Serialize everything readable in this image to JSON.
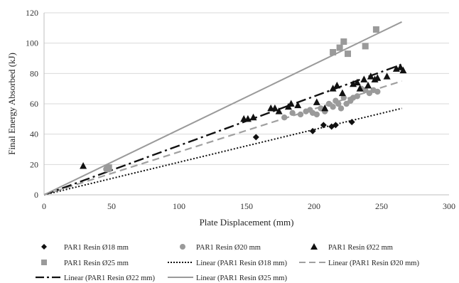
{
  "chart_data": {
    "type": "scatter",
    "xlabel": "Plate Displacement (mm)",
    "ylabel": "Final Energy Absorbed (kJ)",
    "xlim": [
      0,
      300
    ],
    "ylim": [
      0,
      120
    ],
    "x_ticks": [
      "0",
      "50",
      "100",
      "150",
      "200",
      "250",
      "300"
    ],
    "y_ticks": [
      "0",
      "20",
      "40",
      "60",
      "80",
      "100",
      "120"
    ],
    "grid": "horizontal",
    "legend_position": "bottom",
    "series": [
      {
        "name": "PAR1 Resin Ø18 mm",
        "marker": "diamond",
        "color": "#111111",
        "points": [
          [
            157,
            38
          ],
          [
            199,
            42
          ],
          [
            213,
            45
          ],
          [
            216,
            46
          ],
          [
            228,
            48
          ],
          [
            207,
            46
          ]
        ]
      },
      {
        "name": "PAR1 Resin Ø20 mm",
        "marker": "circle",
        "color": "#9a9a9a",
        "points": [
          [
            46,
            17
          ],
          [
            178,
            51
          ],
          [
            184,
            54
          ],
          [
            190,
            53
          ],
          [
            194,
            55
          ],
          [
            197,
            56
          ],
          [
            199,
            54
          ],
          [
            202,
            53
          ],
          [
            205,
            57
          ],
          [
            208,
            55
          ],
          [
            211,
            60
          ],
          [
            214,
            58
          ],
          [
            216,
            62
          ],
          [
            218,
            60
          ],
          [
            220,
            57
          ],
          [
            222,
            64
          ],
          [
            224,
            60
          ],
          [
            227,
            62
          ],
          [
            229,
            64
          ],
          [
            232,
            65
          ],
          [
            235,
            70
          ],
          [
            238,
            69
          ],
          [
            241,
            67
          ],
          [
            244,
            69
          ],
          [
            247,
            68
          ]
        ]
      },
      {
        "name": "PAR1 Resin Ø22 mm",
        "marker": "triangle",
        "color": "#111111",
        "points": [
          [
            29,
            19
          ],
          [
            148,
            50
          ],
          [
            151,
            50
          ],
          [
            155,
            51
          ],
          [
            168,
            57
          ],
          [
            171,
            57
          ],
          [
            174,
            55
          ],
          [
            181,
            58
          ],
          [
            183,
            60
          ],
          [
            188,
            59
          ],
          [
            202,
            61
          ],
          [
            208,
            57
          ],
          [
            214,
            70
          ],
          [
            217,
            72
          ],
          [
            221,
            67
          ],
          [
            229,
            73
          ],
          [
            232,
            74
          ],
          [
            234,
            70
          ],
          [
            237,
            76
          ],
          [
            240,
            72
          ],
          [
            242,
            78
          ],
          [
            245,
            76
          ],
          [
            247,
            77
          ],
          [
            254,
            78
          ],
          [
            261,
            83
          ],
          [
            264,
            84
          ],
          [
            266,
            82
          ]
        ]
      },
      {
        "name": "PAR1 Resin Ø25 mm",
        "marker": "square",
        "color": "#9a9a9a",
        "points": [
          [
            47,
            17
          ],
          [
            48,
            18
          ],
          [
            214,
            94
          ],
          [
            219,
            97
          ],
          [
            222,
            101
          ],
          [
            225,
            93
          ],
          [
            238,
            98
          ],
          [
            246,
            109
          ]
        ]
      }
    ],
    "trendlines": [
      {
        "name": "Linear (PAR1 Resin Ø18 mm)",
        "style": "dotted",
        "color": "#111111",
        "from": [
          0,
          0
        ],
        "to": [
          265,
          57
        ]
      },
      {
        "name": "Linear (PAR1 Resin Ø20 mm)",
        "style": "dashed",
        "color": "#a0a0a0",
        "from": [
          0,
          0
        ],
        "to": [
          265,
          75
        ]
      },
      {
        "name": "Linear (PAR1 Resin Ø22 mm)",
        "style": "dash-dot",
        "color": "#111111",
        "from": [
          0,
          0
        ],
        "to": [
          265,
          86
        ]
      },
      {
        "name": "Linear (PAR1 Resin Ø25 mm)",
        "style": "solid",
        "color": "#9a9a9a",
        "from": [
          0,
          0
        ],
        "to": [
          265,
          114
        ]
      }
    ]
  }
}
